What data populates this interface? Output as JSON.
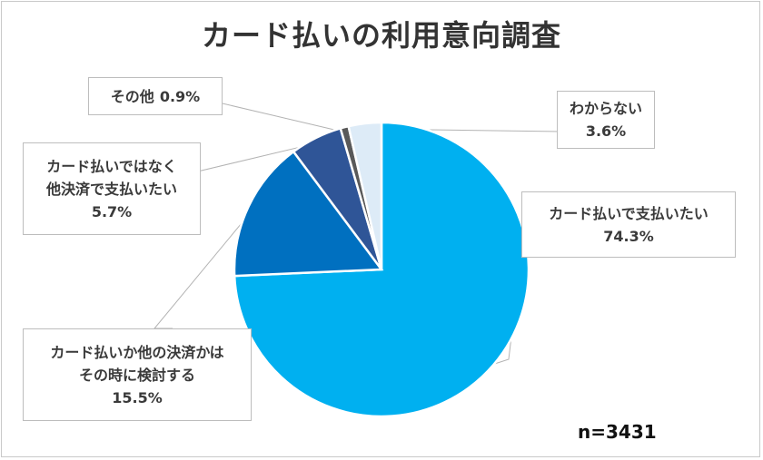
{
  "chart_data": {
    "type": "pie",
    "title": "カード払いの利用意向調査",
    "note": "n=3431",
    "slices": [
      {
        "label_lines": [
          "カード払いで支払いたい"
        ],
        "value": 74.3,
        "value_text": "74.3%",
        "color": "#00B0F0"
      },
      {
        "label_lines": [
          "カード払いか他の決済かは",
          "その時に検討する"
        ],
        "value": 15.5,
        "value_text": "15.5%",
        "color": "#0070C0"
      },
      {
        "label_lines": [
          "カード払いではなく",
          "他決済で支払いたい"
        ],
        "value": 5.7,
        "value_text": "5.7%",
        "color": "#2F5597"
      },
      {
        "label_lines": [
          "その他"
        ],
        "value": 0.9,
        "value_text": "0.9%",
        "color": "#595959"
      },
      {
        "label_lines": [
          "わからない"
        ],
        "value": 3.6,
        "value_text": "3.6%",
        "color": "#DDEBF7"
      }
    ]
  }
}
